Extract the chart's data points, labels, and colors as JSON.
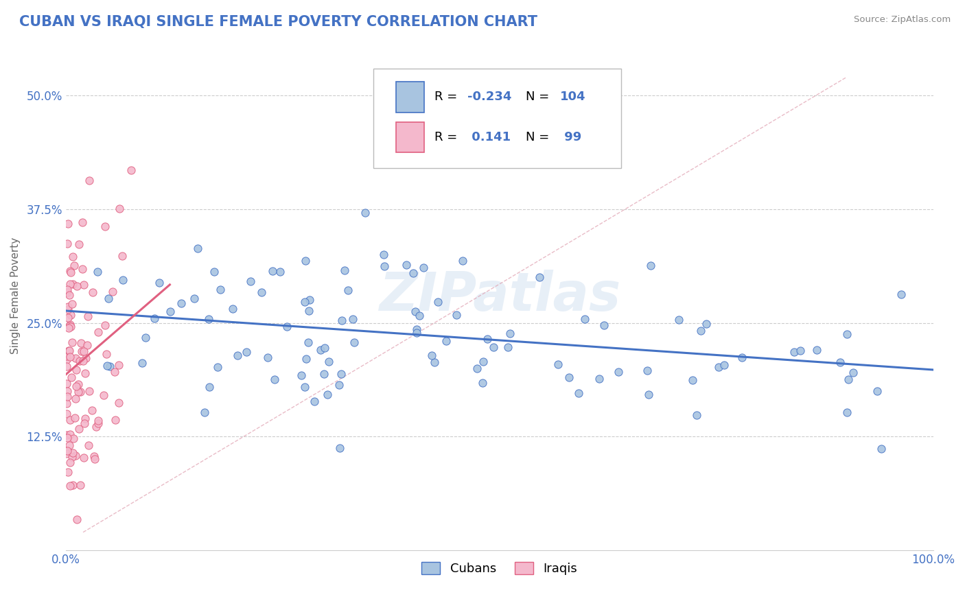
{
  "title": "CUBAN VS IRAQI SINGLE FEMALE POVERTY CORRELATION CHART",
  "source": "Source: ZipAtlas.com",
  "ylabel": "Single Female Poverty",
  "xlim": [
    0,
    1.0
  ],
  "ylim": [
    0,
    0.56
  ],
  "xticks": [
    0.0,
    1.0
  ],
  "xticklabels": [
    "0.0%",
    "100.0%"
  ],
  "yticks": [
    0.125,
    0.25,
    0.375,
    0.5
  ],
  "yticklabels": [
    "12.5%",
    "25.0%",
    "37.5%",
    "50.0%"
  ],
  "cuban_color": "#a8c4e0",
  "iraqi_color": "#f4b8cc",
  "cuban_line_color": "#4472c4",
  "iraqi_line_color": "#e06080",
  "cuban_R": -0.234,
  "cuban_N": 104,
  "iraqi_R": 0.141,
  "iraqi_N": 99,
  "legend_label_cubans": "Cubans",
  "legend_label_iraqis": "Iraqis",
  "watermark": "ZIPatlas",
  "background_color": "#ffffff",
  "grid_color": "#cccccc",
  "title_color": "#4472c4"
}
